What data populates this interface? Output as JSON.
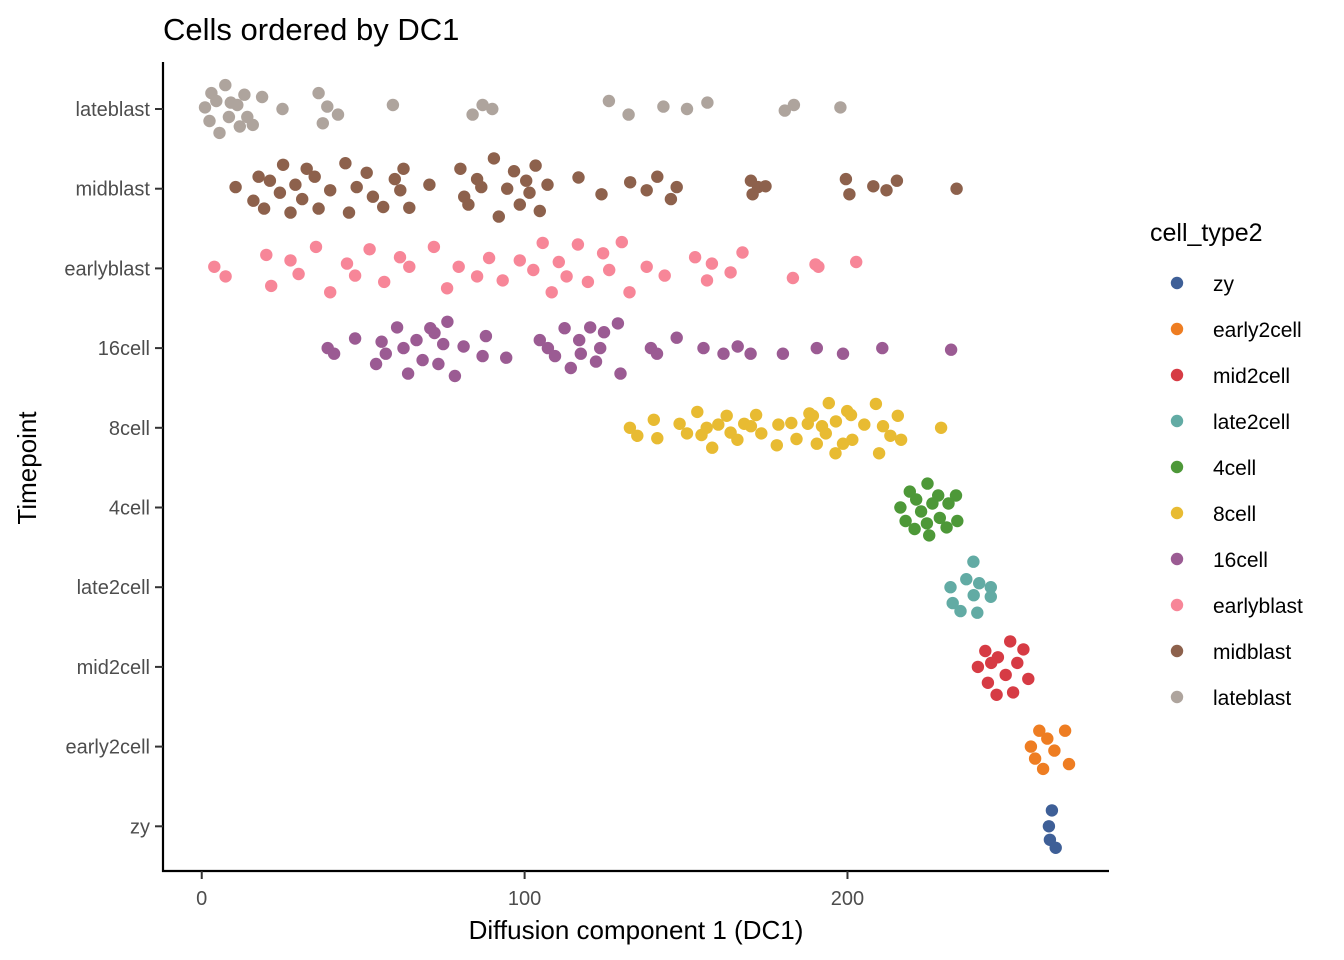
{
  "chart_data": {
    "type": "scatter",
    "title": "Cells ordered by DC1",
    "xlabel": "Diffusion component 1 (DC1)",
    "ylabel": "Timepoint",
    "xlim": [
      -12,
      281
    ],
    "x_ticks": [
      0,
      100,
      200
    ],
    "x_tick_labels": [
      "0",
      "100",
      "200"
    ],
    "categories": [
      "zy",
      "early2cell",
      "mid2cell",
      "late2cell",
      "4cell",
      "8cell",
      "16cell",
      "earlyblast",
      "midblast",
      "lateblast"
    ],
    "grid": false,
    "legend": {
      "title": "cell_type2",
      "position": "right"
    },
    "series": [
      {
        "name": "zy",
        "color": "#3e5f97",
        "category": "zy",
        "points": [
          [
            263.3,
            0.2
          ],
          [
            262.4,
            0.0
          ],
          [
            262.7,
            -0.17
          ],
          [
            264.5,
            -0.27
          ]
        ]
      },
      {
        "name": "early2cell",
        "color": "#ee7d22",
        "category": "early2cell",
        "points": [
          [
            259.4,
            0.2
          ],
          [
            267.4,
            0.2
          ],
          [
            261.9,
            0.1
          ],
          [
            256.8,
            0.0
          ],
          [
            264.1,
            -0.05
          ],
          [
            258.1,
            -0.15
          ],
          [
            268.6,
            -0.22
          ],
          [
            260.6,
            -0.28
          ]
        ]
      },
      {
        "name": "mid2cell",
        "color": "#d63b44",
        "category": "mid2cell",
        "points": [
          [
            250.4,
            0.32
          ],
          [
            242.7,
            0.2
          ],
          [
            254.5,
            0.22
          ],
          [
            246.6,
            0.12
          ],
          [
            240.4,
            0.0
          ],
          [
            244.5,
            0.05
          ],
          [
            252.6,
            0.05
          ],
          [
            249.0,
            -0.1
          ],
          [
            256.0,
            -0.15
          ],
          [
            243.5,
            -0.2
          ],
          [
            251.3,
            -0.32
          ],
          [
            246.2,
            -0.35
          ]
        ]
      },
      {
        "name": "late2cell",
        "color": "#62aba4",
        "category": "late2cell",
        "points": [
          [
            239.0,
            0.32
          ],
          [
            236.8,
            0.1
          ],
          [
            231.9,
            0.0
          ],
          [
            244.4,
            0.0
          ],
          [
            240.8,
            0.05
          ],
          [
            239.1,
            -0.1
          ],
          [
            244.4,
            -0.12
          ],
          [
            232.6,
            -0.2
          ],
          [
            235.0,
            -0.3
          ],
          [
            240.2,
            -0.32
          ]
        ]
      },
      {
        "name": "4cell",
        "color": "#4d9838",
        "category": "4cell",
        "points": [
          [
            224.8,
            0.3
          ],
          [
            219.3,
            0.2
          ],
          [
            228.1,
            0.15
          ],
          [
            233.6,
            0.15
          ],
          [
            221.3,
            0.1
          ],
          [
            216.4,
            0.0
          ],
          [
            226.3,
            0.05
          ],
          [
            231.3,
            0.05
          ],
          [
            222.8,
            -0.05
          ],
          [
            218.0,
            -0.17
          ],
          [
            228.6,
            -0.13
          ],
          [
            234.0,
            -0.17
          ],
          [
            224.6,
            -0.2
          ],
          [
            220.8,
            -0.27
          ],
          [
            225.3,
            -0.35
          ],
          [
            230.7,
            -0.25
          ]
        ]
      },
      {
        "name": "8cell",
        "color": "#e8bb32",
        "category": "8cell",
        "points": [
          [
            132.6,
            0.0
          ],
          [
            134.9,
            -0.1
          ],
          [
            140.0,
            0.1
          ],
          [
            141.1,
            -0.13
          ],
          [
            148.0,
            0.05
          ],
          [
            150.3,
            -0.07
          ],
          [
            153.5,
            0.2
          ],
          [
            154.8,
            -0.09
          ],
          [
            156.4,
            0.0
          ],
          [
            158.1,
            -0.25
          ],
          [
            160.0,
            0.04
          ],
          [
            162.6,
            0.15
          ],
          [
            163.8,
            -0.06
          ],
          [
            165.9,
            -0.15
          ],
          [
            168.0,
            0.05
          ],
          [
            170.1,
            0.02
          ],
          [
            171.7,
            0.16
          ],
          [
            173.3,
            -0.07
          ],
          [
            178.1,
            -0.22
          ],
          [
            178.6,
            0.04
          ],
          [
            182.6,
            0.06
          ],
          [
            184.2,
            -0.14
          ],
          [
            187.7,
            0.05
          ],
          [
            188.2,
            0.18
          ],
          [
            189.3,
            0.15
          ],
          [
            190.5,
            -0.2
          ],
          [
            192.1,
            0.02
          ],
          [
            193.3,
            -0.07
          ],
          [
            194.2,
            0.31
          ],
          [
            196.3,
            -0.32
          ],
          [
            196.4,
            0.08
          ],
          [
            198.6,
            -0.2
          ],
          [
            199.9,
            0.21
          ],
          [
            201.1,
            0.16
          ],
          [
            201.5,
            -0.15
          ],
          [
            205.2,
            0.04
          ],
          [
            208.8,
            0.3
          ],
          [
            209.8,
            -0.32
          ],
          [
            211.0,
            0.02
          ],
          [
            213.3,
            -0.1
          ],
          [
            215.6,
            0.15
          ],
          [
            216.6,
            -0.15
          ],
          [
            229.0,
            0.0
          ]
        ]
      },
      {
        "name": "16cell",
        "color": "#9b5b93",
        "category": "16cell",
        "points": [
          [
            39.0,
            0.0
          ],
          [
            41.0,
            -0.07
          ],
          [
            47.5,
            0.12
          ],
          [
            54.0,
            -0.2
          ],
          [
            55.7,
            0.08
          ],
          [
            57.0,
            -0.07
          ],
          [
            60.5,
            0.26
          ],
          [
            62.5,
            0.0
          ],
          [
            63.9,
            -0.32
          ],
          [
            66.5,
            0.1
          ],
          [
            68.4,
            -0.15
          ],
          [
            70.8,
            0.25
          ],
          [
            72.1,
            0.19
          ],
          [
            73.3,
            -0.2
          ],
          [
            74.8,
            0.05
          ],
          [
            76.1,
            0.33
          ],
          [
            78.4,
            -0.35
          ],
          [
            81.1,
            0.02
          ],
          [
            87.0,
            -0.1
          ],
          [
            88.0,
            0.15
          ],
          [
            94.3,
            -0.12
          ],
          [
            104.7,
            0.1
          ],
          [
            107.2,
            0.0
          ],
          [
            109.4,
            -0.1
          ],
          [
            112.4,
            0.25
          ],
          [
            114.3,
            -0.25
          ],
          [
            116.9,
            0.1
          ],
          [
            117.4,
            -0.07
          ],
          [
            120.3,
            0.26
          ],
          [
            122.1,
            -0.17
          ],
          [
            123.4,
            0.0
          ],
          [
            124.6,
            0.2
          ],
          [
            128.9,
            0.31
          ],
          [
            129.7,
            -0.32
          ],
          [
            139.1,
            0.0
          ],
          [
            141.0,
            -0.07
          ],
          [
            147.1,
            0.13
          ],
          [
            155.4,
            0.0
          ],
          [
            161.6,
            -0.07
          ],
          [
            166.0,
            0.02
          ],
          [
            170.0,
            -0.07
          ],
          [
            180.0,
            -0.07
          ],
          [
            190.5,
            0.0
          ],
          [
            198.6,
            -0.07
          ],
          [
            210.8,
            0.0
          ],
          [
            232.1,
            -0.02
          ]
        ]
      },
      {
        "name": "earlyblast",
        "color": "#f78698",
        "category": "earlyblast",
        "points": [
          [
            3.9,
            0.02
          ],
          [
            7.4,
            -0.1
          ],
          [
            20.0,
            0.17
          ],
          [
            21.5,
            -0.22
          ],
          [
            27.5,
            0.1
          ],
          [
            30.0,
            -0.07
          ],
          [
            35.4,
            0.27
          ],
          [
            39.8,
            -0.3
          ],
          [
            45.0,
            0.06
          ],
          [
            47.5,
            -0.09
          ],
          [
            52.0,
            0.24
          ],
          [
            56.5,
            -0.17
          ],
          [
            61.4,
            0.14
          ],
          [
            64.3,
            0.02
          ],
          [
            71.9,
            0.27
          ],
          [
            76.0,
            -0.25
          ],
          [
            79.6,
            0.02
          ],
          [
            85.3,
            -0.1
          ],
          [
            89.0,
            0.13
          ],
          [
            93.2,
            -0.15
          ],
          [
            98.5,
            0.1
          ],
          [
            102.7,
            -0.02
          ],
          [
            105.6,
            0.32
          ],
          [
            108.4,
            -0.3
          ],
          [
            110.6,
            0.08
          ],
          [
            113.0,
            -0.1
          ],
          [
            116.5,
            0.3
          ],
          [
            119.6,
            -0.17
          ],
          [
            124.3,
            0.19
          ],
          [
            126.2,
            -0.02
          ],
          [
            130.1,
            0.33
          ],
          [
            132.5,
            -0.3
          ],
          [
            137.8,
            0.02
          ],
          [
            143.4,
            -0.09
          ],
          [
            152.8,
            0.14
          ],
          [
            156.5,
            -0.15
          ],
          [
            158.0,
            0.06
          ],
          [
            163.8,
            -0.05
          ],
          [
            167.5,
            0.2
          ],
          [
            183.1,
            -0.12
          ],
          [
            190.1,
            0.05
          ],
          [
            191.0,
            0.02
          ],
          [
            202.7,
            0.08
          ]
        ]
      },
      {
        "name": "midblast",
        "color": "#8d614c",
        "category": "midblast",
        "points": [
          [
            10.5,
            0.02
          ],
          [
            16.0,
            -0.15
          ],
          [
            17.6,
            0.15
          ],
          [
            19.3,
            -0.25
          ],
          [
            21.1,
            0.1
          ],
          [
            24.2,
            -0.05
          ],
          [
            25.2,
            0.3
          ],
          [
            27.5,
            -0.3
          ],
          [
            29.0,
            0.05
          ],
          [
            31.1,
            -0.13
          ],
          [
            32.5,
            0.25
          ],
          [
            35.0,
            0.15
          ],
          [
            36.2,
            -0.25
          ],
          [
            39.8,
            -0.02
          ],
          [
            44.5,
            0.32
          ],
          [
            45.6,
            -0.3
          ],
          [
            48.0,
            0.02
          ],
          [
            51.1,
            0.2
          ],
          [
            53.0,
            -0.1
          ],
          [
            56.2,
            -0.23
          ],
          [
            59.8,
            0.12
          ],
          [
            61.5,
            -0.02
          ],
          [
            62.5,
            0.25
          ],
          [
            64.3,
            -0.24
          ],
          [
            70.5,
            0.05
          ],
          [
            80.1,
            0.25
          ],
          [
            81.3,
            -0.1
          ],
          [
            82.6,
            -0.2
          ],
          [
            85.3,
            0.12
          ],
          [
            86.6,
            0.02
          ],
          [
            90.5,
            0.38
          ],
          [
            92.0,
            -0.35
          ],
          [
            94.6,
            0.0
          ],
          [
            96.7,
            0.22
          ],
          [
            98.5,
            -0.2
          ],
          [
            100.5,
            0.1
          ],
          [
            101.5,
            -0.05
          ],
          [
            103.4,
            0.29
          ],
          [
            104.7,
            -0.28
          ],
          [
            107.1,
            0.05
          ],
          [
            116.7,
            0.14
          ],
          [
            123.8,
            -0.07
          ],
          [
            132.7,
            0.08
          ],
          [
            137.8,
            -0.02
          ],
          [
            141.1,
            0.15
          ],
          [
            145.3,
            -0.13
          ],
          [
            147.1,
            0.02
          ],
          [
            170.1,
            0.1
          ],
          [
            170.6,
            -0.07
          ],
          [
            172.3,
            0.02
          ],
          [
            174.6,
            0.03
          ],
          [
            199.5,
            0.12
          ],
          [
            200.6,
            -0.07
          ],
          [
            208.0,
            0.03
          ],
          [
            212.1,
            -0.02
          ],
          [
            215.3,
            0.1
          ],
          [
            233.8,
            0.0
          ]
        ]
      },
      {
        "name": "lateblast",
        "color": "#aea49d",
        "category": "lateblast",
        "points": [
          [
            1.0,
            0.02
          ],
          [
            2.4,
            -0.15
          ],
          [
            3.0,
            0.2
          ],
          [
            4.5,
            0.1
          ],
          [
            5.5,
            -0.3
          ],
          [
            7.3,
            0.3
          ],
          [
            8.4,
            -0.1
          ],
          [
            9.0,
            0.08
          ],
          [
            11.0,
            0.05
          ],
          [
            11.8,
            -0.22
          ],
          [
            13.2,
            0.18
          ],
          [
            14.1,
            -0.1
          ],
          [
            15.8,
            -0.2
          ],
          [
            18.7,
            0.15
          ],
          [
            25.0,
            0.0
          ],
          [
            36.2,
            0.2
          ],
          [
            37.5,
            -0.18
          ],
          [
            38.9,
            0.03
          ],
          [
            42.2,
            -0.07
          ],
          [
            59.2,
            0.05
          ],
          [
            83.9,
            -0.07
          ],
          [
            87.0,
            0.05
          ],
          [
            90.0,
            0.0
          ],
          [
            126.1,
            0.1
          ],
          [
            132.2,
            -0.07
          ],
          [
            143.0,
            0.03
          ],
          [
            150.3,
            0.0
          ],
          [
            156.6,
            0.08
          ],
          [
            180.6,
            -0.02
          ],
          [
            183.4,
            0.05
          ],
          [
            197.8,
            0.02
          ]
        ]
      }
    ]
  }
}
